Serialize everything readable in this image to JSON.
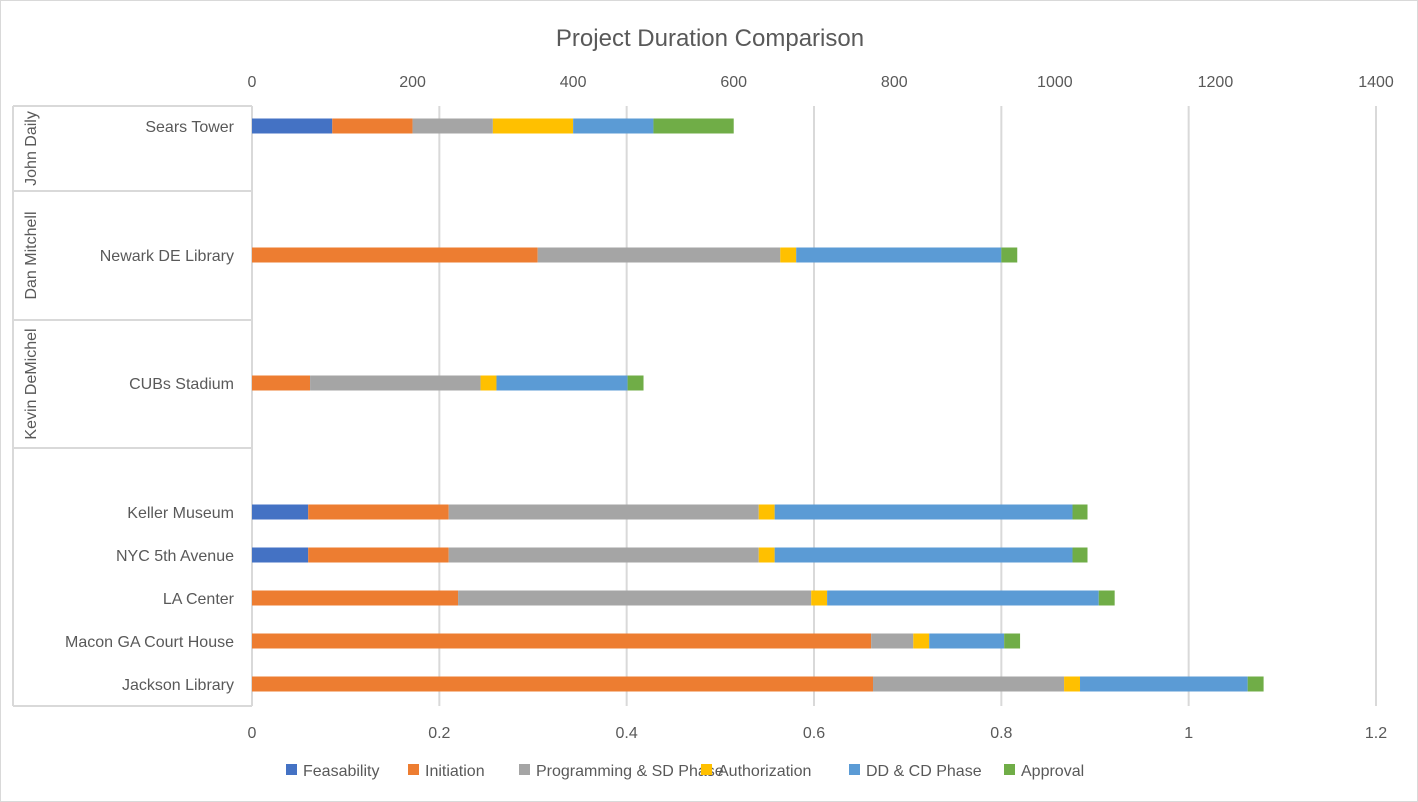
{
  "chart_data": {
    "type": "bar",
    "orientation": "horizontal-stacked",
    "title": "Project Duration Comparison",
    "primary_axis": {
      "position": "bottom",
      "range": [
        0,
        1.2
      ],
      "ticks": [
        "0",
        "0.2",
        "0.4",
        "0.6",
        "0.8",
        "1",
        "1.2"
      ]
    },
    "secondary_axis": {
      "position": "top",
      "range": [
        0,
        1400
      ],
      "ticks": [
        "0",
        "200",
        "400",
        "600",
        "800",
        "1000",
        "1200",
        "1400"
      ]
    },
    "grid": true,
    "legend_position": "bottom",
    "series": [
      {
        "name": "Feasability",
        "color": "#4472C4"
      },
      {
        "name": "Initiation",
        "color": "#ED7D31"
      },
      {
        "name": "Programming & SD Phase",
        "color": "#A5A5A5"
      },
      {
        "name": "Authorization",
        "color": "#FFC000"
      },
      {
        "name": "DD & CD Phase",
        "color": "#5B9BD5"
      },
      {
        "name": "Approval",
        "color": "#70AD47"
      }
    ],
    "groups": [
      {
        "name": "John Daily",
        "projects": [
          {
            "name": "Sears Tower",
            "axis": "secondary",
            "values": [
              100,
              100,
              100,
              100,
              100,
              100
            ]
          }
        ]
      },
      {
        "name": "Dan Mitchell",
        "projects": [
          {
            "name": "Newark DE Library",
            "axis": "primary",
            "values": [
              0,
              0.305,
              0.259,
              0.017,
              0.219,
              0.017
            ]
          }
        ]
      },
      {
        "name": "Kevin DeMichel",
        "projects": [
          {
            "name": "CUBs Stadium",
            "axis": "primary",
            "values": [
              0,
              0.062,
              0.182,
              0.017,
              0.14,
              0.017
            ]
          }
        ]
      },
      {
        "name": "",
        "projects": [
          {
            "name": "Keller Museum",
            "axis": "primary",
            "values": [
              0.06,
              0.15,
              0.331,
              0.017,
              0.318,
              0.016
            ]
          },
          {
            "name": "NYC 5th Avenue",
            "axis": "primary",
            "values": [
              0.06,
              0.15,
              0.331,
              0.017,
              0.318,
              0.016
            ]
          },
          {
            "name": "LA Center",
            "axis": "primary",
            "values": [
              0,
              0.22,
              0.377,
              0.017,
              0.29,
              0.017
            ]
          },
          {
            "name": "Macon GA Court House",
            "axis": "primary",
            "values": [
              0,
              0.661,
              0.045,
              0.017,
              0.08,
              0.017
            ]
          },
          {
            "name": "Jackson Library",
            "axis": "primary",
            "values": [
              0,
              0.663,
              0.204,
              0.017,
              0.179,
              0.017
            ]
          }
        ]
      }
    ]
  }
}
